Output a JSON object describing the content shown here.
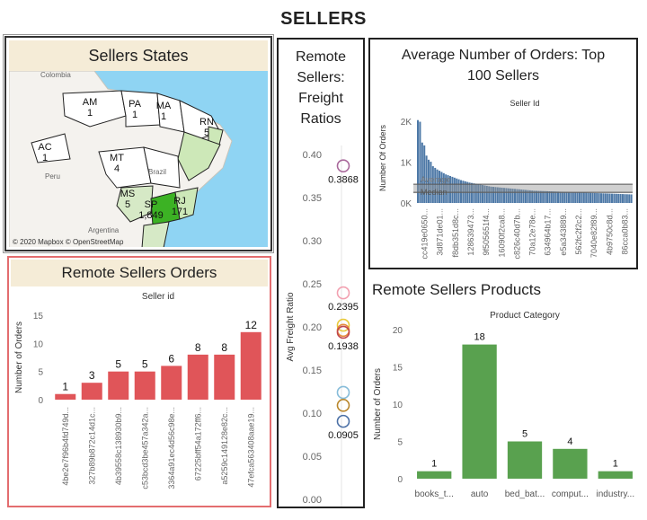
{
  "page": {
    "title": "SELLERS"
  },
  "map": {
    "title": "Sellers States",
    "attribution": "© 2020 Mapbox © OpenStreetMap",
    "country_labels": [
      "Colombia",
      "Peru",
      "Brazil",
      "Argentina"
    ],
    "states": [
      {
        "code": "AM",
        "count": "1"
      },
      {
        "code": "PA",
        "count": "1"
      },
      {
        "code": "MA",
        "count": "1"
      },
      {
        "code": "RN",
        "count": "5"
      },
      {
        "code": "AC",
        "count": "1"
      },
      {
        "code": "MT",
        "count": "4"
      },
      {
        "code": "MS",
        "count": "5"
      },
      {
        "code": "SP",
        "count": "1,849"
      },
      {
        "code": "RJ",
        "count": "171"
      }
    ]
  },
  "rso": {
    "title": "Remote Sellers Orders",
    "chart_data": {
      "type": "bar",
      "title": "Seller id",
      "ylabel": "Number of Orders",
      "ylim": [
        0,
        15
      ],
      "yticks": [
        0,
        5,
        10,
        15
      ],
      "categories": [
        "4be2e7f96b4fd749d...",
        "327b89b872c14d1c...",
        "4b39558c138930b9...",
        "c53bcd3be457a342a...",
        "3364a91ec4d56c98e...",
        "67225bff54a172ff6...",
        "a5259c149128e82c...",
        "47efca563408aae19..."
      ],
      "values": [
        1,
        3,
        5,
        5,
        6,
        8,
        8,
        12
      ],
      "color": "#e05559"
    }
  },
  "freight": {
    "title_lines": [
      "Remote",
      "Sellers:",
      "Freight",
      "Ratios"
    ],
    "chart_data": {
      "type": "scatter",
      "ylabel": "Avg Freight Ratio",
      "ylim": [
        0,
        0.4
      ],
      "yticks": [
        "0.00",
        "0.05",
        "0.10",
        "0.15",
        "0.20",
        "0.25",
        "0.30",
        "0.35",
        "0.40"
      ],
      "points": [
        {
          "y": 0.3868,
          "color": "#a8679a",
          "label": "0.3868"
        },
        {
          "y": 0.2395,
          "color": "#f2a0b0",
          "label": "0.2395"
        },
        {
          "y": 0.202,
          "color": "#e8c93a",
          "label": ""
        },
        {
          "y": 0.196,
          "color": "#e58b3a",
          "label": ""
        },
        {
          "y": 0.1938,
          "color": "#c0464c",
          "label": "0.1938"
        },
        {
          "y": 0.124,
          "color": "#86bcd9",
          "label": ""
        },
        {
          "y": 0.109,
          "color": "#b8862b",
          "label": ""
        },
        {
          "y": 0.0905,
          "color": "#4a6fa5",
          "label": "0.0905"
        }
      ]
    }
  },
  "avg": {
    "title_lines": [
      "Average Number of Orders: Top",
      "100 Sellers"
    ],
    "chart_data": {
      "type": "bar",
      "title": "Seller Id",
      "ylabel": "Number Of Orders",
      "ylim": [
        0,
        2200
      ],
      "yticks": [
        {
          "v": 0,
          "label": "0K"
        },
        {
          "v": 1000,
          "label": "1K"
        },
        {
          "v": 2000,
          "label": "2K"
        }
      ],
      "reference_lines": [
        "Average",
        "Median"
      ],
      "average": 460,
      "median": 260,
      "band": [
        240,
        470
      ],
      "tick_labels": [
        "cc419e0650...",
        "3d871de01...",
        "f8db351d8c...",
        "128639473...",
        "9f505651f4...",
        "16090f2ca8...",
        "c826c40d7b...",
        "70a12e78e...",
        "634964b17...",
        "e5a343889...",
        "562fc2f2c2...",
        "7040e82f89...",
        "4b9750c8d...",
        "86cca0b83..."
      ],
      "values": [
        2030,
        1990,
        1480,
        1410,
        1160,
        1060,
        1010,
        900,
        860,
        820,
        790,
        760,
        730,
        700,
        680,
        660,
        640,
        620,
        600,
        580,
        560,
        545,
        530,
        515,
        500,
        490,
        480,
        470,
        460,
        450,
        440,
        430,
        420,
        410,
        400,
        395,
        390,
        385,
        380,
        375,
        370,
        365,
        360,
        355,
        350,
        345,
        340,
        335,
        330,
        325,
        320,
        315,
        310,
        305,
        300,
        298,
        296,
        294,
        292,
        290,
        288,
        286,
        284,
        282,
        280,
        278,
        276,
        274,
        272,
        270,
        268,
        266,
        264,
        262,
        260,
        258,
        256,
        254,
        252,
        250,
        248,
        246,
        244,
        242,
        240,
        238,
        236,
        234,
        232,
        230,
        228,
        226,
        224,
        222,
        220,
        218,
        216,
        214,
        212,
        210
      ],
      "color": "#4e79a7"
    }
  },
  "rsp": {
    "title": "Remote Sellers Products",
    "chart_data": {
      "type": "bar",
      "title": "Product Category",
      "ylabel": "Number of Orders",
      "ylim": [
        0,
        20
      ],
      "yticks": [
        0,
        5,
        10,
        15,
        20
      ],
      "categories": [
        "books_t...",
        "auto",
        "bed_bat...",
        "comput...",
        "industry..."
      ],
      "values": [
        1,
        18,
        5,
        4,
        1
      ],
      "color": "#59a14f"
    }
  }
}
